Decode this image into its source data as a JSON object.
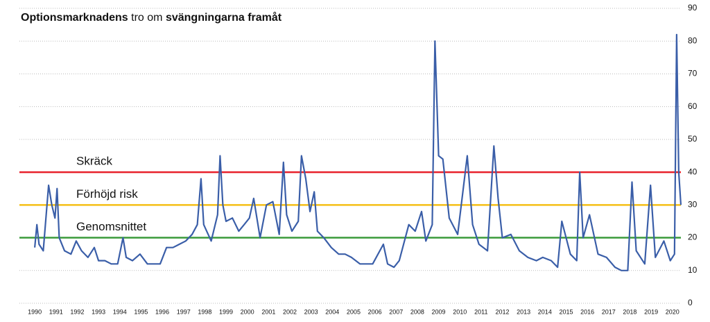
{
  "chart_data": {
    "type": "line",
    "title": [
      "Optionsmarknadens",
      "tro om",
      "svängningarna framåt"
    ],
    "xlim": [
      1989.93,
      2020.4
    ],
    "ylim": [
      0,
      90
    ],
    "yticks": [
      0,
      10,
      20,
      30,
      40,
      50,
      60,
      70,
      80,
      90
    ],
    "xticks": [
      1990,
      1991,
      1992,
      1993,
      1994,
      1995,
      1996,
      1997,
      1998,
      1999,
      2000,
      2001,
      2002,
      2003,
      2004,
      2005,
      2006,
      2007,
      2008,
      2009,
      2010,
      2011,
      2012,
      2013,
      2014,
      2015,
      2016,
      2017,
      2018,
      2019,
      2020
    ],
    "grid": true,
    "reference_lines": [
      {
        "value": 40,
        "label": "Skräck",
        "color": "#e8202a"
      },
      {
        "value": 30,
        "label": "Förhöjd risk",
        "color": "#f5bf16"
      },
      {
        "value": 20,
        "label": "Genomsnittet",
        "color": "#3a9a3a"
      }
    ],
    "x": [
      1990.0,
      1990.1,
      1990.2,
      1990.4,
      1990.55,
      1990.65,
      1990.8,
      1990.95,
      1991.05,
      1991.15,
      1991.4,
      1991.7,
      1991.95,
      1992.2,
      1992.5,
      1992.8,
      1993.0,
      1993.3,
      1993.6,
      1993.9,
      1994.15,
      1994.3,
      1994.6,
      1994.95,
      1995.3,
      1995.6,
      1995.9,
      1996.2,
      1996.5,
      1996.8,
      1997.1,
      1997.4,
      1997.65,
      1997.82,
      1997.95,
      1998.3,
      1998.6,
      1998.72,
      1998.85,
      1999.0,
      1999.3,
      1999.6,
      1999.85,
      2000.1,
      2000.3,
      2000.6,
      2000.9,
      2001.2,
      2001.5,
      2001.7,
      2001.85,
      2002.1,
      2002.4,
      2002.55,
      2002.75,
      2002.95,
      2003.15,
      2003.3,
      2003.6,
      2003.95,
      2004.3,
      2004.6,
      2004.9,
      2005.3,
      2005.6,
      2005.9,
      2006.4,
      2006.6,
      2006.9,
      2007.15,
      2007.6,
      2007.9,
      2008.2,
      2008.4,
      2008.7,
      2008.83,
      2009.0,
      2009.2,
      2009.5,
      2009.9,
      2010.35,
      2010.6,
      2010.9,
      2011.3,
      2011.6,
      2011.8,
      2012.0,
      2012.4,
      2012.8,
      2013.2,
      2013.6,
      2013.9,
      2014.3,
      2014.6,
      2014.8,
      2015.2,
      2015.5,
      2015.64,
      2015.8,
      2016.1,
      2016.5,
      2016.9,
      2017.3,
      2017.6,
      2017.9,
      2018.1,
      2018.3,
      2018.7,
      2018.97,
      2019.2,
      2019.6,
      2019.9,
      2020.1,
      2020.2,
      2020.3,
      2020.4
    ],
    "series": [
      {
        "color": "#3a5ea8",
        "values": [
          17,
          24,
          18,
          16,
          28,
          36,
          30,
          26,
          35,
          20,
          16,
          15,
          19,
          16,
          14,
          17,
          13,
          13,
          12,
          12,
          20,
          14,
          13,
          15,
          12,
          12,
          12,
          17,
          17,
          18,
          19,
          21,
          24,
          38,
          24,
          19,
          27,
          45,
          30,
          25,
          26,
          22,
          24,
          26,
          32,
          20,
          30,
          31,
          21,
          43,
          27,
          22,
          25,
          45,
          38,
          28,
          34,
          22,
          20,
          17,
          15,
          15,
          14,
          12,
          12,
          12,
          18,
          12,
          11,
          13,
          24,
          22,
          28,
          19,
          24,
          80,
          45,
          44,
          26,
          21,
          45,
          24,
          18,
          16,
          48,
          32,
          20,
          21,
          16,
          14,
          13,
          14,
          13,
          11,
          25,
          15,
          13,
          40,
          20,
          27,
          15,
          14,
          11,
          10,
          10,
          37,
          16,
          12,
          36,
          14,
          19,
          13,
          15,
          82,
          40,
          30
        ]
      }
    ]
  }
}
